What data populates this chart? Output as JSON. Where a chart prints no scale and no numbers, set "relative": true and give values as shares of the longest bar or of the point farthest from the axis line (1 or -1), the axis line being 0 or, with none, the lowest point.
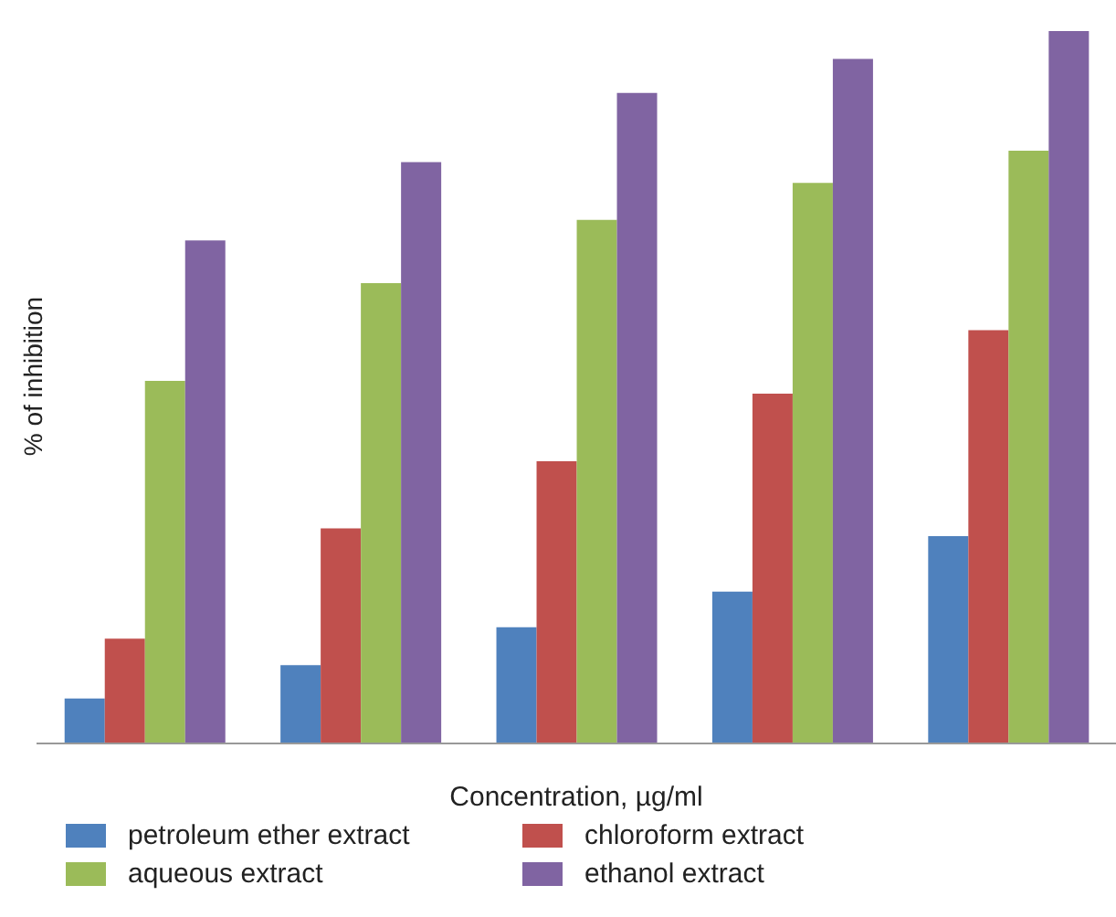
{
  "chart_data": {
    "type": "bar",
    "relative": true,
    "xlabel": "Concentration, µg/ml",
    "ylabel": "% of inhibition",
    "categories": [
      null,
      null,
      null,
      null,
      null
    ],
    "legend": "bottom",
    "series": [
      {
        "name": "petroleum ether extract",
        "color": "#4f81bd",
        "values": [
          0.063,
          0.11,
          0.163,
          0.213,
          0.291
        ]
      },
      {
        "name": "chloroform extract",
        "color": "#c0504d",
        "values": [
          0.147,
          0.302,
          0.396,
          0.491,
          0.58
        ]
      },
      {
        "name": "aqueous extract",
        "color": "#9bbb59",
        "values": [
          0.509,
          0.646,
          0.735,
          0.787,
          0.832
        ]
      },
      {
        "name": "ethanol extract",
        "color": "#8064a2",
        "values": [
          0.706,
          0.816,
          0.913,
          0.961,
          1
        ]
      }
    ]
  }
}
